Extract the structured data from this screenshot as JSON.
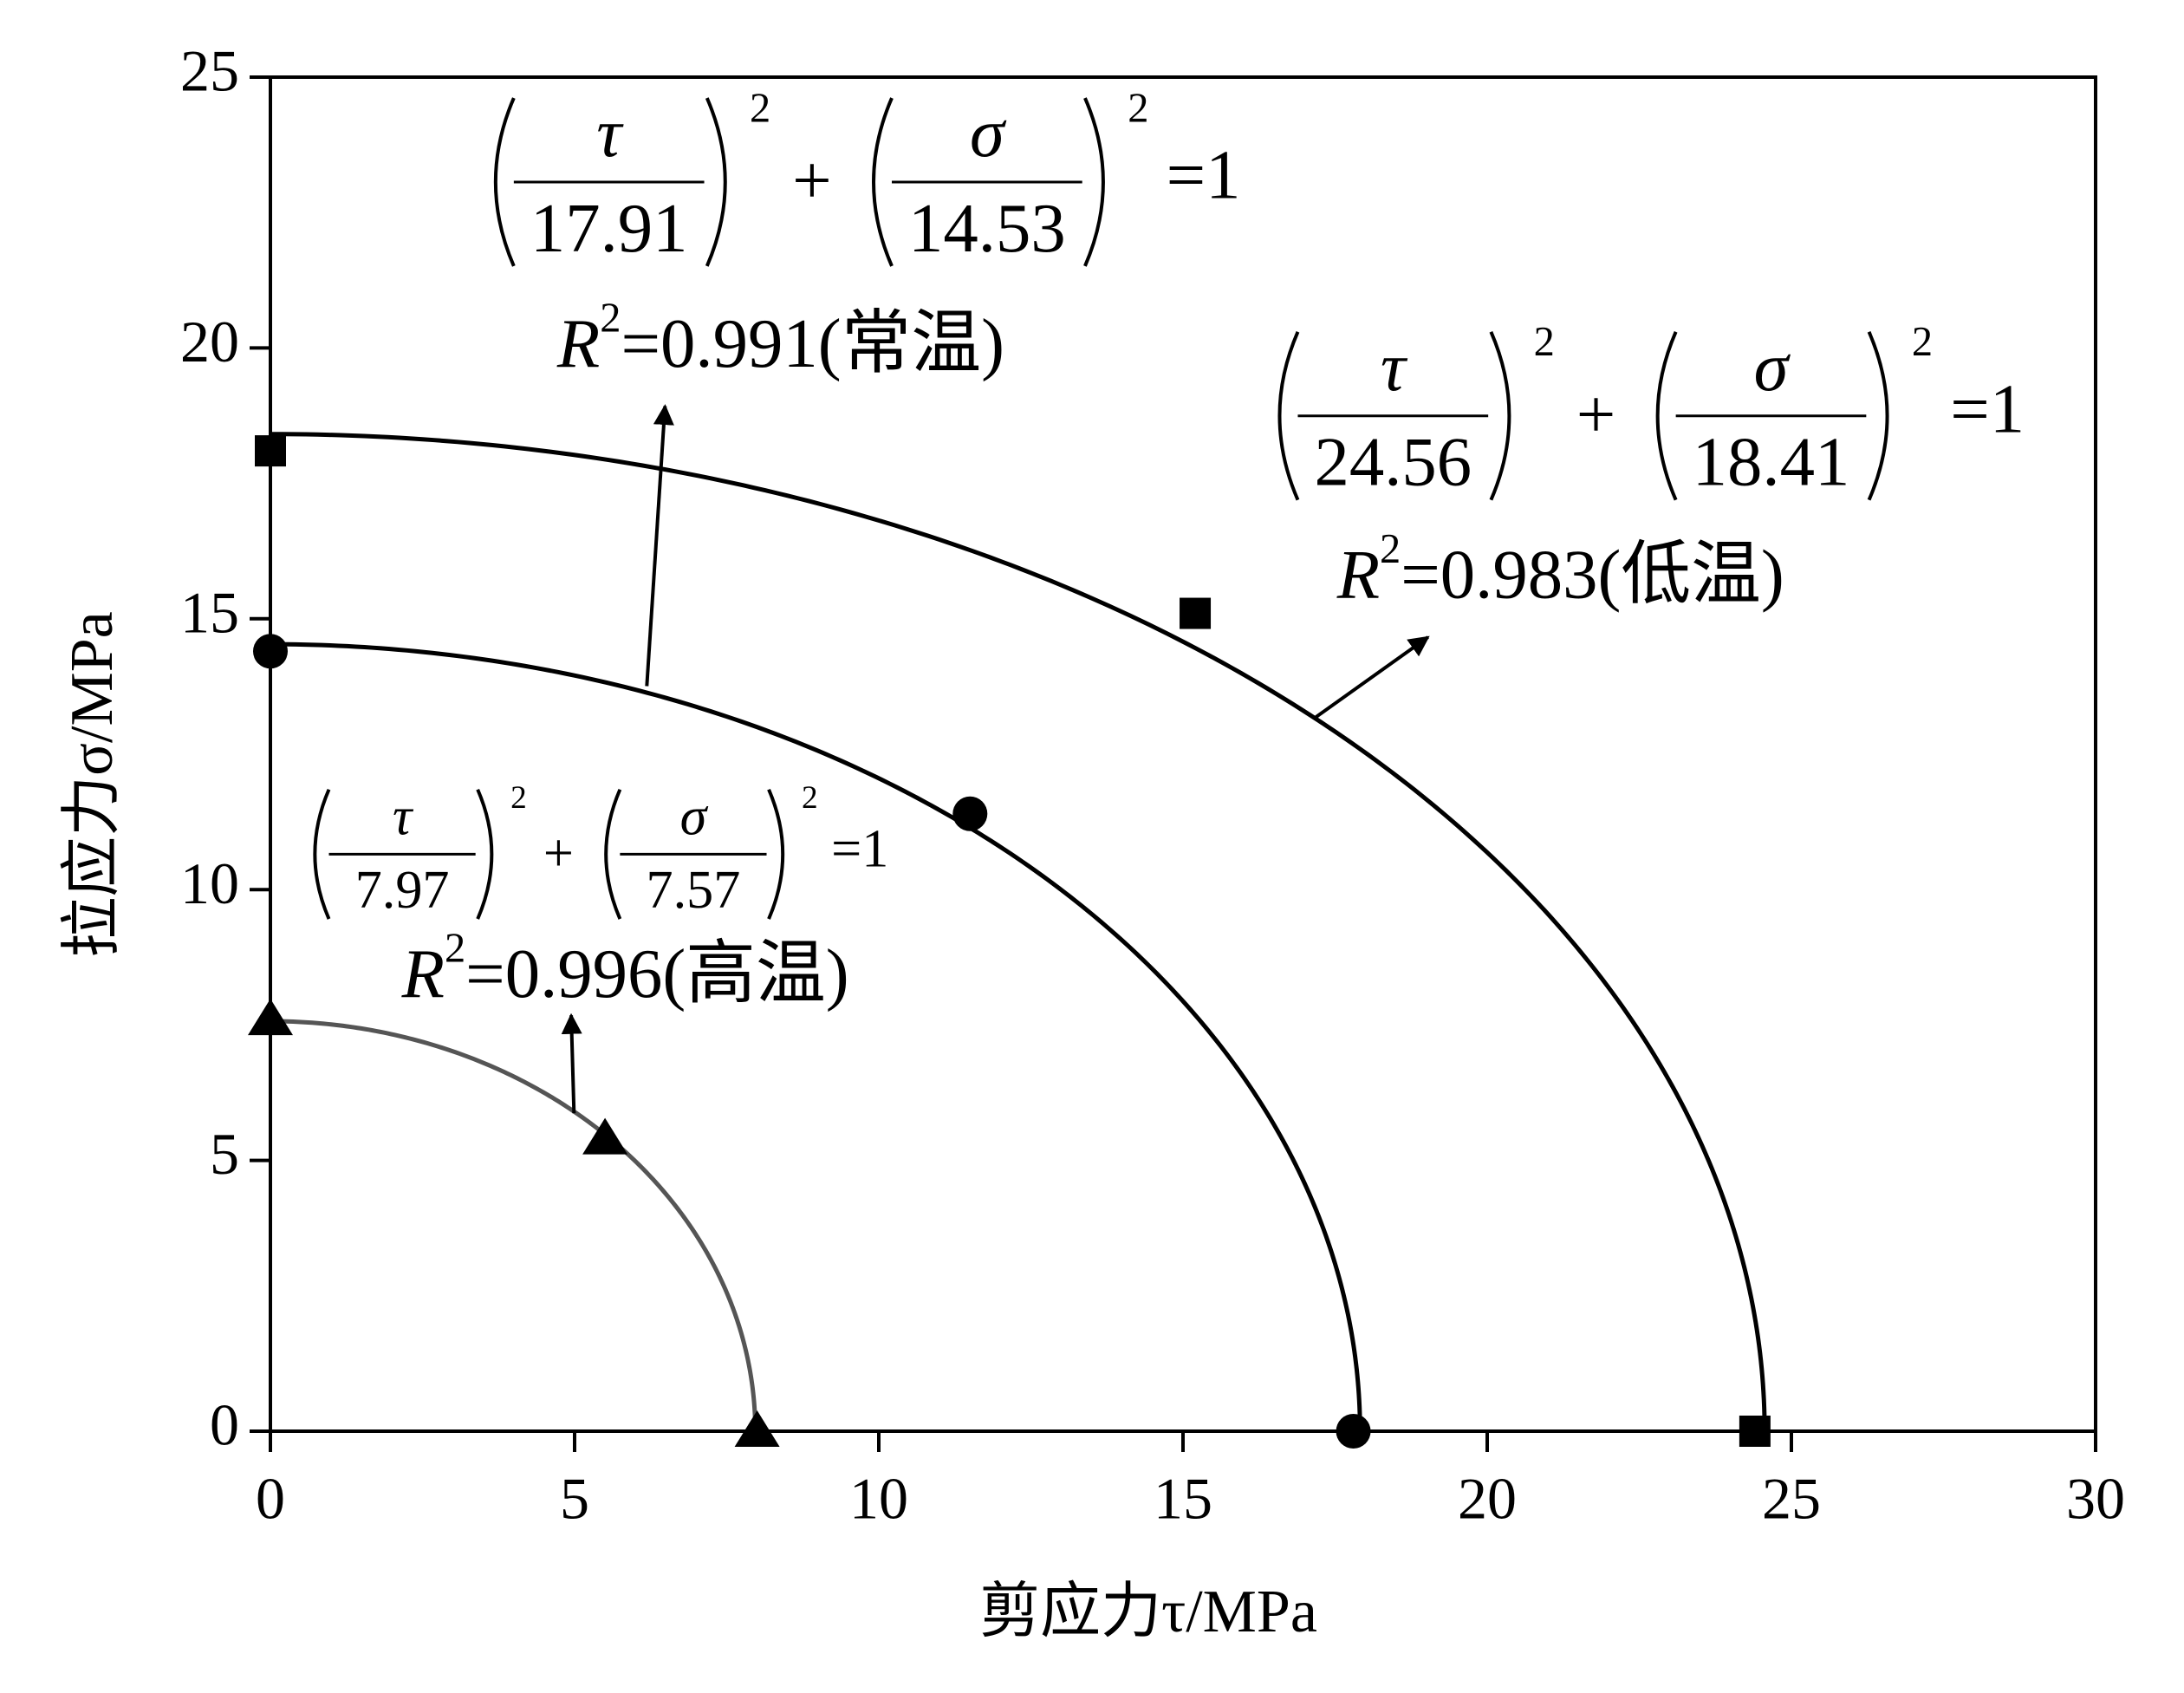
{
  "chart_data": {
    "type": "scatter",
    "xlabel": "剪应力τ/MPa",
    "ylabel": "拉应力σ/MPa",
    "xlim": [
      0,
      30
    ],
    "ylim": [
      0,
      25
    ],
    "xticks": [
      0,
      5,
      10,
      15,
      20,
      25,
      30
    ],
    "yticks": [
      0,
      5,
      10,
      15,
      20,
      25
    ],
    "grid": false,
    "annotations": {
      "tau": "τ",
      "sigma": "σ",
      "exponent": "2",
      "plus": "+",
      "equals": "=1",
      "r": "R"
    },
    "series": [
      {
        "color": "#000000",
        "marker": "square",
        "x": [
          0,
          15.2,
          24.4
        ],
        "values": [
          18.1,
          15.1,
          0
        ],
        "fit": {
          "a": 24.56,
          "b": 18.41
        },
        "curve_color": "#000000",
        "r2_text": "=0.983(低温)"
      },
      {
        "color": "#000000",
        "marker": "circle",
        "x": [
          0,
          11.5,
          17.8
        ],
        "values": [
          14.4,
          11.4,
          0
        ],
        "fit": {
          "a": 17.91,
          "b": 14.53
        },
        "curve_color": "#000000",
        "r2_text": "=0.991(常温)"
      },
      {
        "color": "#000000",
        "marker": "triangle",
        "x": [
          0,
          5.5,
          8.0
        ],
        "values": [
          7.6,
          5.4,
          0
        ],
        "fit": {
          "a": 7.97,
          "b": 7.57
        },
        "curve_color": "#555555",
        "r2_text": "=0.996(高温)"
      }
    ]
  }
}
